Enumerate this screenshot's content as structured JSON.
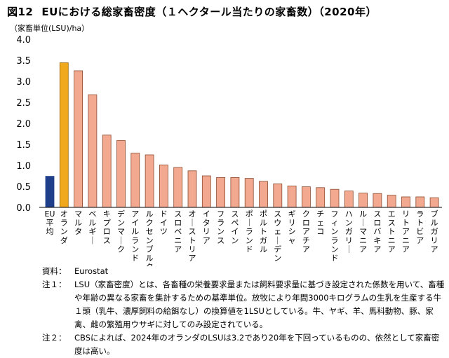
{
  "title": {
    "number": "図12",
    "text": "EUにおける総家畜密度（１ヘクタール当たりの家畜数）（2020年）"
  },
  "chart_data": {
    "type": "bar",
    "ylabel": "（家畜単位(LSU)/ha）",
    "ylim": [
      0,
      4.0
    ],
    "yticks": [
      "0.0",
      "0.5",
      "1.0",
      "1.5",
      "2.0",
      "2.5",
      "3.0",
      "3.5",
      "4.0"
    ],
    "categories": [
      "EU平均",
      "オランダ",
      "マルタ",
      "ベルギー",
      "キプロス",
      "デンマーク",
      "アイルランド",
      "ルクセンブルク",
      "ドイツ",
      "スロベニア",
      "オーストリア",
      "イタリア",
      "フランス",
      "スペイン",
      "ポーランド",
      "ポルトガル",
      "スウェーデン",
      "ギリシャ",
      "クロアチア",
      "チェコ",
      "フィンランド",
      "ハンガリー",
      "ルーマニア",
      "スロバキア",
      "エストニア",
      "リトアニア",
      "ラトビア",
      "ブルガリア"
    ],
    "values": [
      0.74,
      3.44,
      3.25,
      2.68,
      1.72,
      1.59,
      1.29,
      1.25,
      1.01,
      0.95,
      0.87,
      0.75,
      0.71,
      0.71,
      0.69,
      0.62,
      0.56,
      0.51,
      0.49,
      0.47,
      0.43,
      0.39,
      0.34,
      0.33,
      0.29,
      0.25,
      0.25,
      0.23
    ],
    "colors": {
      "eu_average": "#1f3f8a",
      "netherlands": "#f0a81c",
      "others": "#f2a98f",
      "outline": "#8a4a2e"
    }
  },
  "notes": [
    {
      "label": "資料：",
      "text": "Eurostat"
    },
    {
      "label": "注１：",
      "text": "LSU（家畜密度）とは、各畜種の栄養要求量または飼料要求量に基づき設定された係数を用いて、畜種や年齢の異なる家畜を集計するための基準単位。放牧により年間3000キログラムの生乳を生産する牛１頭（乳牛、濃厚飼料の給餌なし）の換算値を1LSUとしている。牛、ヤギ、羊、馬科動物、豚、家禽、雌の繁殖用ウサギに対してのみ設定されている。"
    },
    {
      "label": "注２：",
      "text": "CBSによれば、2024年のオランダのLSUは3.2であり20年を下回っているものの、依然として家畜密度は高い。"
    }
  ]
}
